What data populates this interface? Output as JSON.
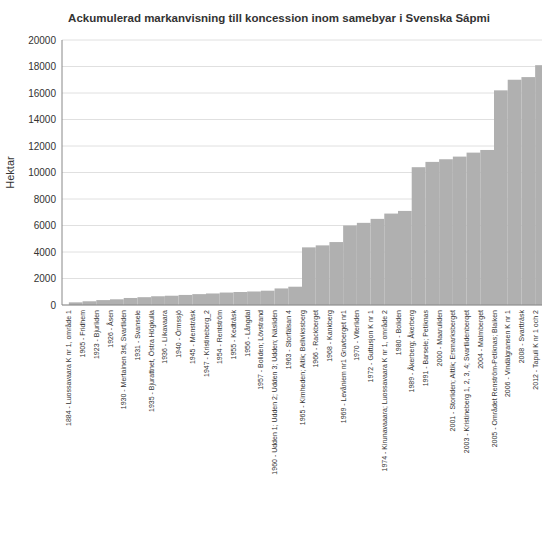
{
  "chart_data": {
    "type": "step",
    "title": "Ackumulerad markanvisning till koncession inom samebyar i Svenska Sápmi",
    "ylabel": "Hektar",
    "categories": [
      "1884 - Luossavaara K nr 1, område 1",
      "1905 - Fridhem",
      "1923 - Bjurliden",
      "1926 - Åsen",
      "1930 - Mertainen 3st, Svartliden",
      "1931 - Svansele",
      "1935 - Bjurattnet, Östra Högkulla",
      "1936 - Liikavaara",
      "1940 - Örmssjö",
      "1945 - Mensträsk",
      "1947 - Kristineberg_2",
      "1954 - Rentström",
      "1955 - Kedträsk",
      "1956 - Långdal",
      "1957 - Boliden; Lövstrand",
      "1960 - Udden 1; Udden 2; Udden 3; Udden; Näsliden",
      "1963 - Storfälsan 4",
      "1965 - Kimheden; Aitik; Bellvikssberg",
      "1966 - Rackberget",
      "1968 - Kankberg",
      "1969 - Levåniem nr1 Gruvberget nr1",
      "1970 - Viterliden",
      "1972 - Guttusjon K nr 1",
      "1974 - Kirunavaaara; Luossavaara K nr 1, område 2",
      "1980 - Boliden",
      "1989 - Åkerberg; Åkerberg",
      "1991 - Barsele; Petiknas",
      "2000 - Maaruliden",
      "2001 - Storliden; Aittik; Ersmarksberget",
      "2003 - Kristineberg 1, 2, 3, 4; Svartlidenberqet",
      "2004 - Malmberget",
      "2005 - Området Renström-Petiknas; Blaiken",
      "2006 - Vindälgransen K nr 1",
      "2008 - Svartträsk",
      "2012 - Tapuli K nr 1 och 2"
    ],
    "values": [
      200,
      280,
      370,
      430,
      530,
      590,
      660,
      700,
      760,
      820,
      870,
      940,
      980,
      1020,
      1080,
      1250,
      1380,
      4350,
      4500,
      4750,
      6000,
      6200,
      6500,
      6900,
      7100,
      10400,
      10800,
      11000,
      11200,
      11500,
      11700,
      16200,
      17000,
      17200,
      18100
    ],
    "color": "#b0b0b0",
    "ylim": [
      0,
      20000
    ],
    "yticks": [
      0,
      2000,
      4000,
      6000,
      8000,
      10000,
      12000,
      14000,
      16000,
      18000,
      20000
    ],
    "grid": true
  }
}
